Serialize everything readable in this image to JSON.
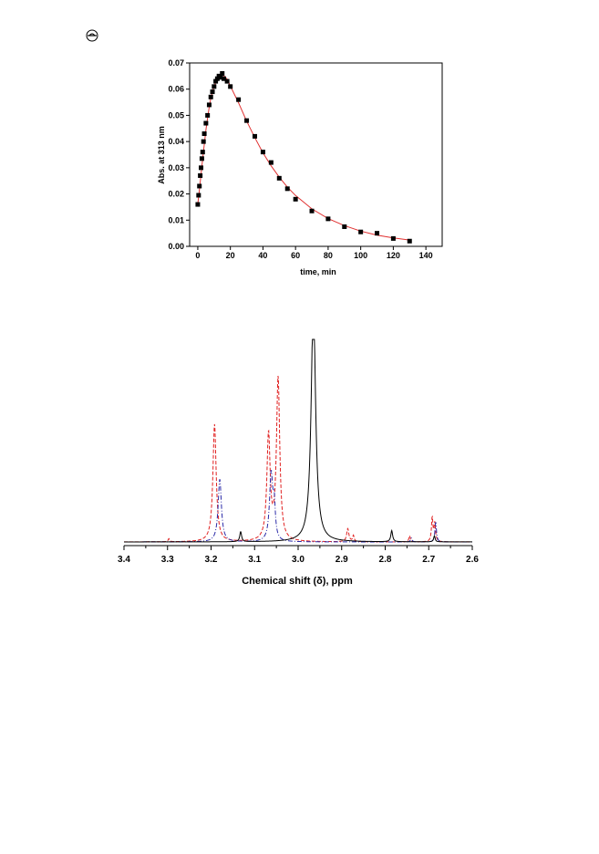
{
  "colors": {
    "fit_line": "#e03030",
    "marker": "#000000",
    "spectrum_black": "#000000",
    "spectrum_red": "#e02020",
    "spectrum_blue": "#2a2aa8"
  },
  "icons": {
    "page_mark": "crossed-circle-icon"
  },
  "chart_data": [
    {
      "type": "scatter",
      "title": "",
      "xlabel": "time, min",
      "ylabel": "Abs. at 313 nm",
      "xlim": [
        -5,
        150
      ],
      "ylim": [
        0.0,
        0.07
      ],
      "x_ticks": [
        "0",
        "20",
        "40",
        "60",
        "80",
        "100",
        "120",
        "140"
      ],
      "y_ticks": [
        "0.00",
        "0.01",
        "0.02",
        "0.03",
        "0.04",
        "0.05",
        "0.06",
        "0.07"
      ],
      "x_tick_values": [
        0,
        20,
        40,
        60,
        80,
        100,
        120,
        140
      ],
      "y_tick_values": [
        0.0,
        0.01,
        0.02,
        0.03,
        0.04,
        0.05,
        0.06,
        0.07
      ],
      "points": {
        "x": [
          0,
          0.5,
          1,
          1.5,
          2,
          2.5,
          3,
          3.5,
          4,
          5,
          6,
          7,
          8,
          9,
          10,
          11,
          12,
          13,
          14,
          15,
          16,
          18,
          20,
          25,
          30,
          35,
          40,
          45,
          50,
          55,
          60,
          70,
          80,
          90,
          100,
          110,
          120,
          130
        ],
        "y": [
          0.016,
          0.0195,
          0.023,
          0.027,
          0.03,
          0.0335,
          0.036,
          0.04,
          0.043,
          0.047,
          0.05,
          0.054,
          0.057,
          0.059,
          0.061,
          0.063,
          0.064,
          0.065,
          0.0645,
          0.066,
          0.064,
          0.063,
          0.061,
          0.056,
          0.048,
          0.042,
          0.036,
          0.032,
          0.026,
          0.022,
          0.018,
          0.0135,
          0.0105,
          0.0075,
          0.0055,
          0.005,
          0.003,
          0.002
        ]
      },
      "fit": {
        "x": [
          0,
          1,
          2,
          3,
          4,
          5,
          6,
          7,
          8,
          9,
          10,
          11,
          12,
          13,
          14,
          15,
          16,
          18,
          20,
          25,
          30,
          35,
          40,
          45,
          50,
          55,
          60,
          70,
          80,
          90,
          100,
          110,
          120,
          130
        ],
        "y": [
          0.016,
          0.0215,
          0.0275,
          0.0335,
          0.039,
          0.0445,
          0.049,
          0.053,
          0.0565,
          0.059,
          0.061,
          0.0625,
          0.0638,
          0.0646,
          0.0652,
          0.0654,
          0.0652,
          0.0638,
          0.0612,
          0.0548,
          0.0478,
          0.0415,
          0.0357,
          0.0307,
          0.0264,
          0.0226,
          0.0194,
          0.0143,
          0.0106,
          0.0079,
          0.0058,
          0.0043,
          0.0032,
          0.0024
        ]
      }
    },
    {
      "type": "line",
      "title": "",
      "xlabel": "Chemical shift (δ), ppm",
      "ylabel": "",
      "xlim": [
        3.4,
        2.6
      ],
      "x_ticks": [
        "3.4",
        "3.3",
        "3.2",
        "3.1",
        "3.0",
        "2.9",
        "2.8",
        "2.7",
        "2.6"
      ],
      "x_tick_values": [
        3.4,
        3.3,
        3.2,
        3.1,
        3.0,
        2.9,
        2.8,
        2.7,
        2.6
      ],
      "series": [
        {
          "color": "#000000",
          "style": "solid",
          "peaks": [
            {
              "x": 2.965,
              "h": 1.2,
              "w": 0.006
            },
            {
              "x": 3.132,
              "h": 0.05,
              "w": 0.0025
            },
            {
              "x": 2.785,
              "h": 0.055,
              "w": 0.0025
            },
            {
              "x": 2.687,
              "h": 0.03,
              "w": 0.002
            }
          ]
        },
        {
          "color": "#e02020",
          "style": "dashed",
          "peaks": [
            {
              "x": 3.192,
              "h": 0.58,
              "w": 0.0045
            },
            {
              "x": 3.068,
              "h": 0.52,
              "w": 0.0045
            },
            {
              "x": 3.046,
              "h": 0.8,
              "w": 0.0045
            },
            {
              "x": 2.886,
              "h": 0.065,
              "w": 0.003
            },
            {
              "x": 2.873,
              "h": 0.03,
              "w": 0.002
            },
            {
              "x": 2.744,
              "h": 0.03,
              "w": 0.002
            },
            {
              "x": 2.692,
              "h": 0.12,
              "w": 0.002
            },
            {
              "x": 2.686,
              "h": 0.09,
              "w": 0.002
            },
            {
              "x": 3.297,
              "h": 0.015,
              "w": 0.002
            }
          ]
        },
        {
          "color": "#2a2aa8",
          "style": "dashdot",
          "peaks": [
            {
              "x": 3.18,
              "h": 0.31,
              "w": 0.0045
            },
            {
              "x": 3.062,
              "h": 0.33,
              "w": 0.0045
            },
            {
              "x": 3.055,
              "h": 0.16,
              "w": 0.003
            },
            {
              "x": 2.684,
              "h": 0.1,
              "w": 0.002
            },
            {
              "x": 2.74,
              "h": 0.02,
              "w": 0.002
            }
          ]
        }
      ]
    }
  ]
}
